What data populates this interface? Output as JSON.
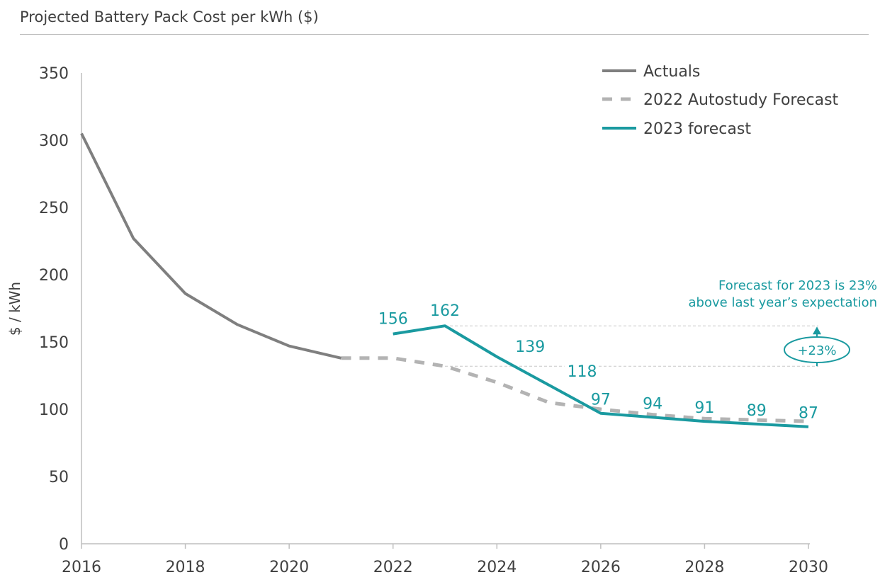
{
  "chart_data": {
    "type": "line",
    "title": "Projected Battery Pack Cost per kWh ($)",
    "xlabel": "",
    "ylabel": "$ / kWh",
    "xlim": [
      2016,
      2030
    ],
    "ylim": [
      0,
      350
    ],
    "x_ticks": [
      2016,
      2018,
      2020,
      2022,
      2024,
      2026,
      2028,
      2030
    ],
    "y_ticks": [
      0,
      50,
      100,
      150,
      200,
      250,
      300,
      350
    ],
    "grid": false,
    "legend_position": "top-right",
    "series": [
      {
        "name": "Actuals",
        "style": "solid",
        "color": "#7f7f7f",
        "x": [
          2016,
          2017,
          2018,
          2019,
          2020,
          2021
        ],
        "values": [
          305,
          227,
          186,
          163,
          147,
          138
        ]
      },
      {
        "name": "2022 Autostudy Forecast",
        "style": "dashed",
        "color": "#b3b3b3",
        "x": [
          2021,
          2022,
          2023,
          2024,
          2025,
          2026,
          2027,
          2028,
          2029,
          2030
        ],
        "values": [
          138,
          138,
          132,
          120,
          105,
          100,
          96,
          93,
          92,
          91
        ]
      },
      {
        "name": "2023 forecast",
        "style": "solid",
        "color": "#1a9aa0",
        "x": [
          2022,
          2023,
          2024,
          2025,
          2026,
          2027,
          2028,
          2029,
          2030
        ],
        "values": [
          156,
          162,
          139,
          118,
          97,
          94,
          91,
          89,
          87
        ],
        "data_labels": [
          "156",
          "162",
          "139",
          "118",
          "97",
          "94",
          "91",
          "89",
          "87"
        ]
      }
    ],
    "annotations": {
      "text_line1": "Forecast for 2023 is 23%",
      "text_line2": "above last year’s expectation",
      "badge": "+23%",
      "reference_upper": 162,
      "reference_lower": 132
    }
  }
}
